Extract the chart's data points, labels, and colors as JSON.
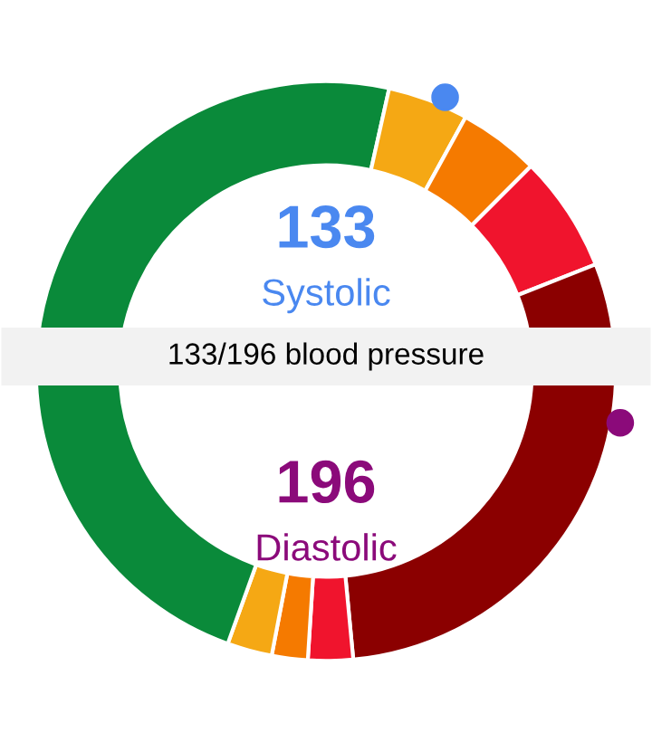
{
  "chart_data": {
    "type": "donut",
    "categories": [
      null,
      null,
      null,
      null,
      null,
      null,
      null,
      null,
      null,
      null
    ],
    "values": [
      28.5,
      4.5,
      4.5,
      6.5,
      6,
      23.5,
      2.5,
      2,
      2.5,
      19.5
    ],
    "colors": [
      "#0a8a3a",
      "#f5a814",
      "#f57a00",
      "#f0142d",
      "#8b0000",
      "#8b0000",
      "#f0142d",
      "#f57a00",
      "#f5a814",
      "#0a8a3a"
    ],
    "annotations": [
      "133",
      "Systolic",
      "133/196 blood pressure",
      "196",
      "Diastolic"
    ]
  }
}
